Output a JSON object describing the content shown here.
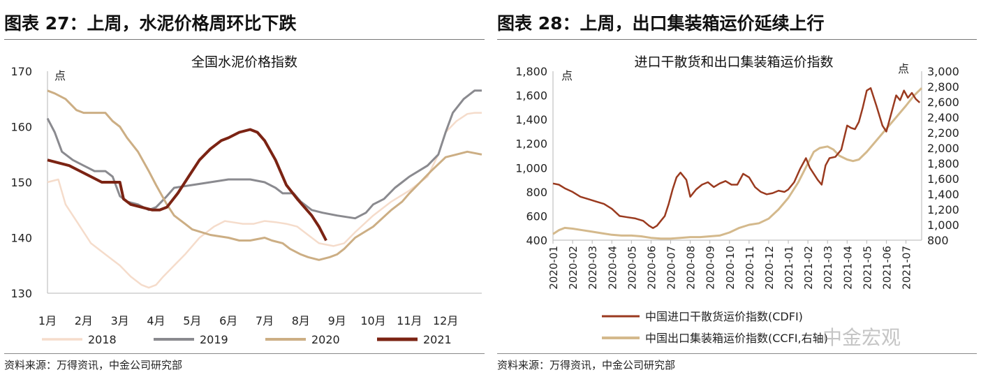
{
  "colors": {
    "s2018": "#f5dccb",
    "s2019": "#8a8a8f",
    "s2020": "#ccae84",
    "s2021": "#7b2313",
    "cdfi": "#9a3a1f",
    "ccfi": "#d4b98c"
  },
  "watermark": "中金宏观",
  "left": {
    "fig_title": "图表 27：上周，水泥价格周环比下跌",
    "source": "资料来源：万得资讯，中金公司研究部",
    "chart_data": {
      "type": "line",
      "title": "全国水泥价格指数",
      "ylabel": "点",
      "ylim": [
        130,
        170
      ],
      "yticks": [
        130,
        140,
        150,
        160,
        170
      ],
      "xlim": [
        0,
        12
      ],
      "xticks": [
        "1月",
        "2月",
        "3月",
        "4月",
        "5月",
        "6月",
        "7月",
        "8月",
        "9月",
        "10月",
        "11月",
        "12月"
      ],
      "legend": [
        "2018",
        "2019",
        "2020",
        "2021"
      ],
      "series": [
        {
          "name": "2018",
          "x": [
            0,
            0.3,
            0.5,
            0.8,
            1.2,
            1.6,
            2.0,
            2.3,
            2.6,
            2.8,
            3.0,
            3.2,
            3.5,
            3.8,
            4.2,
            4.6,
            4.9,
            5.1,
            5.4,
            5.7,
            6.0,
            6.3,
            6.6,
            6.9,
            7.2,
            7.5,
            7.9,
            8.2,
            8.5,
            9.0,
            9.5,
            10.0,
            10.5,
            10.8,
            11.0,
            11.3,
            11.6,
            11.8,
            12.0
          ],
          "y": [
            150,
            150.5,
            146,
            143,
            139,
            137,
            135,
            133,
            131.5,
            131,
            131.5,
            133,
            135,
            137,
            140,
            142,
            143,
            142.8,
            142.5,
            142.5,
            143,
            142.8,
            142.5,
            142,
            140.5,
            139,
            138.5,
            139,
            141,
            144,
            146.5,
            148.5,
            151,
            155,
            159,
            161,
            162.3,
            162.5,
            162.5
          ]
        },
        {
          "name": "2019",
          "x": [
            0,
            0.2,
            0.4,
            0.7,
            1.0,
            1.3,
            1.6,
            1.8,
            2.0,
            2.2,
            2.5,
            2.8,
            3.0,
            3.3,
            3.5,
            4.0,
            4.5,
            5.0,
            5.3,
            5.6,
            6.0,
            6.3,
            6.5,
            6.8,
            7.0,
            7.3,
            7.6,
            8.0,
            8.5,
            8.8,
            9.0,
            9.3,
            9.6,
            9.8,
            10.0,
            10.5,
            10.8,
            11.0,
            11.2,
            11.5,
            11.8,
            12.0
          ],
          "y": [
            161.5,
            159,
            155.5,
            154,
            153,
            152,
            152,
            151,
            147.5,
            146.5,
            146,
            145,
            145.5,
            147.5,
            149,
            149.5,
            150,
            150.5,
            150.5,
            150.5,
            150,
            149,
            148,
            148,
            146.5,
            145,
            144.5,
            144,
            143.5,
            144.5,
            146,
            147,
            149,
            150,
            151,
            153,
            155,
            159,
            162.5,
            165,
            166.5,
            166.5
          ]
        },
        {
          "name": "2020",
          "x": [
            0,
            0.2,
            0.5,
            0.8,
            1.0,
            1.3,
            1.6,
            1.8,
            2.0,
            2.2,
            2.5,
            2.8,
            3.0,
            3.3,
            3.5,
            3.8,
            4.0,
            4.5,
            5.0,
            5.3,
            5.6,
            6.0,
            6.2,
            6.5,
            6.7,
            7.0,
            7.2,
            7.5,
            7.8,
            8.0,
            8.2,
            8.5,
            9.0,
            9.5,
            9.8,
            10.0,
            10.3,
            10.6,
            11.0,
            11.3,
            11.6,
            12.0
          ],
          "y": [
            166.5,
            166,
            165,
            163,
            162.5,
            162.5,
            162.5,
            161,
            160,
            158,
            155.5,
            152,
            149.5,
            146,
            144,
            142.5,
            141.5,
            140.5,
            140,
            139.5,
            139.5,
            140,
            139.5,
            139,
            138,
            137,
            136.5,
            136,
            136.5,
            137,
            138,
            140,
            142,
            145,
            146.5,
            148,
            150,
            152,
            154.5,
            155,
            155.5,
            155
          ]
        },
        {
          "name": "2021",
          "x": [
            0,
            0.3,
            0.6,
            0.9,
            1.2,
            1.5,
            1.8,
            2.0,
            2.1,
            2.3,
            2.6,
            2.9,
            3.1,
            3.3,
            3.6,
            3.9,
            4.2,
            4.5,
            4.8,
            5.0,
            5.3,
            5.6,
            5.8,
            6.0,
            6.3,
            6.6,
            6.9,
            7.1,
            7.3,
            7.5,
            7.7
          ],
          "y": [
            154,
            153.5,
            153,
            152,
            151,
            150,
            150,
            150,
            147,
            146,
            145.5,
            145,
            145,
            145.5,
            148,
            151,
            154,
            156,
            157.5,
            158,
            159,
            159.5,
            159,
            157.5,
            154,
            149.5,
            147,
            145.5,
            144,
            142,
            139.5
          ]
        }
      ]
    }
  },
  "right": {
    "fig_title": "图表 28：上周，出口集装箱运价延续上行",
    "source": "资料来源：万得资讯，中金公司研究部",
    "chart_data": {
      "type": "line",
      "title": "进口干散货和出口集装箱运价指数",
      "ylabel": "点",
      "y2label": "点",
      "ylim": [
        400,
        1800
      ],
      "yticks": [
        400,
        600,
        800,
        1000,
        1200,
        1400,
        1600,
        1800
      ],
      "y2lim": [
        800,
        3000
      ],
      "y2ticks": [
        800,
        1000,
        1200,
        1400,
        1600,
        1800,
        2000,
        2200,
        2400,
        2600,
        2800,
        3000
      ],
      "xlim": [
        0,
        18.8
      ],
      "xticks": [
        "2020-01",
        "2020-02",
        "2020-03",
        "2020-04",
        "2020-05",
        "2020-06",
        "2020-07",
        "2020-08",
        "2020-09",
        "2020-10",
        "2020-11",
        "2020-12",
        "2021-01",
        "2021-02",
        "2021-03",
        "2021-04",
        "2021-05",
        "2021-06",
        "2021-07"
      ],
      "legend": [
        "中国进口干散货运价指数(CDFI)",
        "中国出口集装箱运价指数(CCFI,右轴)"
      ],
      "series": [
        {
          "name": "中国进口干散货运价指数(CDFI)",
          "axis": "left",
          "x": [
            0,
            0.3,
            0.6,
            1.0,
            1.4,
            1.8,
            2.2,
            2.6,
            3.0,
            3.4,
            3.8,
            4.2,
            4.6,
            4.9,
            5.1,
            5.3,
            5.5,
            5.7,
            5.9,
            6.1,
            6.3,
            6.5,
            6.8,
            7.0,
            7.3,
            7.6,
            7.9,
            8.2,
            8.5,
            8.8,
            9.1,
            9.4,
            9.7,
            10.0,
            10.3,
            10.6,
            10.9,
            11.2,
            11.5,
            11.8,
            12.0,
            12.3,
            12.6,
            12.9,
            13.1,
            13.3,
            13.5,
            13.7,
            13.9,
            14.1,
            14.4,
            14.7,
            15.0,
            15.2,
            15.4,
            15.6,
            15.8,
            16.0,
            16.2,
            16.5,
            16.8,
            17.0,
            17.3,
            17.5,
            17.7,
            17.9,
            18.1,
            18.3,
            18.5,
            18.7
          ],
          "y": [
            870,
            860,
            830,
            800,
            760,
            740,
            720,
            700,
            660,
            600,
            590,
            580,
            560,
            520,
            500,
            520,
            560,
            600,
            700,
            820,
            920,
            960,
            900,
            760,
            820,
            860,
            880,
            840,
            870,
            890,
            860,
            860,
            950,
            920,
            840,
            800,
            780,
            790,
            810,
            800,
            820,
            880,
            990,
            1080,
            1000,
            950,
            900,
            860,
            1020,
            1080,
            1090,
            1150,
            1350,
            1330,
            1320,
            1380,
            1500,
            1640,
            1660,
            1510,
            1350,
            1300,
            1480,
            1600,
            1560,
            1640,
            1580,
            1620,
            1570,
            1540
          ]
        },
        {
          "name": "中国出口集装箱运价指数(CCFI,右轴)",
          "axis": "right",
          "x": [
            0,
            0.3,
            0.6,
            1.0,
            1.5,
            2.0,
            2.5,
            3.0,
            3.5,
            4.0,
            4.5,
            5.0,
            5.5,
            6.0,
            6.5,
            7.0,
            7.5,
            8.0,
            8.5,
            9.0,
            9.5,
            10.0,
            10.5,
            11.0,
            11.5,
            12.0,
            12.5,
            13.0,
            13.3,
            13.6,
            14.0,
            14.3,
            14.6,
            15.0,
            15.3,
            15.6,
            16.0,
            16.5,
            17.0,
            17.5,
            18.0,
            18.4,
            18.8
          ],
          "y": [
            880,
            930,
            960,
            950,
            930,
            910,
            890,
            870,
            860,
            860,
            850,
            830,
            820,
            820,
            830,
            840,
            840,
            850,
            860,
            900,
            960,
            1000,
            1020,
            1080,
            1200,
            1350,
            1550,
            1800,
            1950,
            2000,
            2020,
            1980,
            1900,
            1850,
            1830,
            1850,
            1950,
            2100,
            2250,
            2400,
            2550,
            2680,
            2780
          ]
        }
      ]
    }
  }
}
